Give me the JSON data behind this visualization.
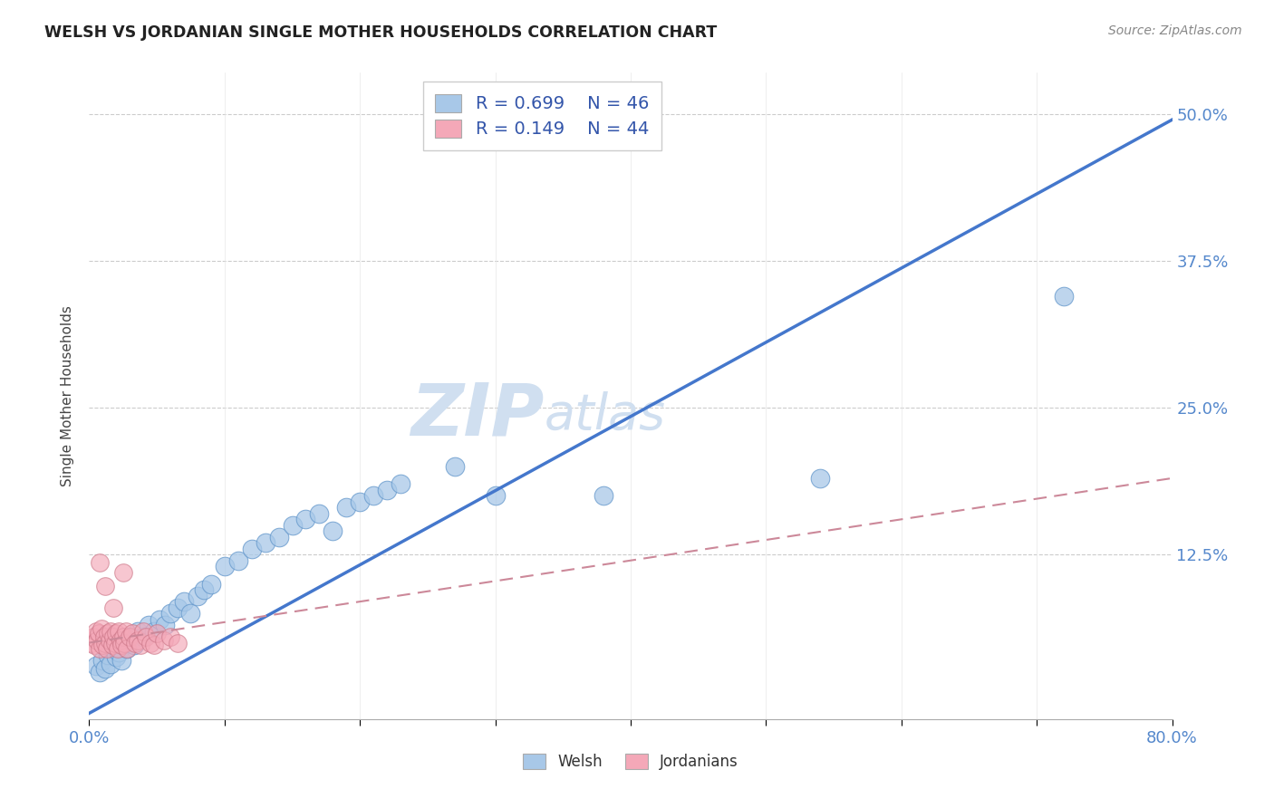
{
  "title": "WELSH VS JORDANIAN SINGLE MOTHER HOUSEHOLDS CORRELATION CHART",
  "source": "Source: ZipAtlas.com",
  "ylabel": "Single Mother Households",
  "xlim": [
    0.0,
    0.8
  ],
  "ylim": [
    -0.015,
    0.535
  ],
  "welsh_color": "#a8c8e8",
  "jordan_color": "#f4a8b8",
  "welsh_edge": "#6699cc",
  "jordan_edge": "#cc7788",
  "line_blue": "#4477cc",
  "line_pink": "#cc8899",
  "watermark_color": "#d0dff0",
  "legend_r_welsh": "R = 0.699",
  "legend_n_welsh": "N = 46",
  "legend_r_jordan": "R = 0.149",
  "legend_n_jordan": "N = 44",
  "welsh_x": [
    0.005,
    0.008,
    0.01,
    0.012,
    0.014,
    0.016,
    0.018,
    0.02,
    0.022,
    0.024,
    0.026,
    0.028,
    0.03,
    0.033,
    0.036,
    0.04,
    0.044,
    0.048,
    0.052,
    0.056,
    0.06,
    0.065,
    0.07,
    0.075,
    0.08,
    0.085,
    0.09,
    0.1,
    0.11,
    0.12,
    0.13,
    0.14,
    0.15,
    0.16,
    0.17,
    0.18,
    0.19,
    0.2,
    0.21,
    0.22,
    0.23,
    0.27,
    0.3,
    0.38,
    0.54,
    0.72
  ],
  "welsh_y": [
    0.03,
    0.025,
    0.035,
    0.028,
    0.04,
    0.032,
    0.045,
    0.038,
    0.042,
    0.035,
    0.05,
    0.045,
    0.055,
    0.048,
    0.06,
    0.055,
    0.065,
    0.06,
    0.07,
    0.065,
    0.075,
    0.08,
    0.085,
    0.075,
    0.09,
    0.095,
    0.1,
    0.115,
    0.12,
    0.13,
    0.135,
    0.14,
    0.15,
    0.155,
    0.16,
    0.145,
    0.165,
    0.17,
    0.175,
    0.18,
    0.185,
    0.2,
    0.175,
    0.175,
    0.19,
    0.345
  ],
  "jordan_x": [
    0.002,
    0.003,
    0.004,
    0.005,
    0.006,
    0.007,
    0.008,
    0.009,
    0.01,
    0.011,
    0.012,
    0.013,
    0.014,
    0.015,
    0.016,
    0.017,
    0.018,
    0.019,
    0.02,
    0.021,
    0.022,
    0.023,
    0.024,
    0.025,
    0.026,
    0.027,
    0.028,
    0.03,
    0.032,
    0.034,
    0.036,
    0.038,
    0.04,
    0.042,
    0.045,
    0.048,
    0.05,
    0.055,
    0.06,
    0.065,
    0.008,
    0.012,
    0.018,
    0.025
  ],
  "jordan_y": [
    0.05,
    0.055,
    0.048,
    0.06,
    0.052,
    0.058,
    0.045,
    0.062,
    0.048,
    0.055,
    0.05,
    0.045,
    0.058,
    0.052,
    0.06,
    0.048,
    0.055,
    0.05,
    0.058,
    0.045,
    0.06,
    0.052,
    0.048,
    0.055,
    0.05,
    0.06,
    0.045,
    0.055,
    0.058,
    0.05,
    0.052,
    0.048,
    0.06,
    0.055,
    0.05,
    0.048,
    0.058,
    0.052,
    0.055,
    0.05,
    0.118,
    0.098,
    0.08,
    0.11
  ],
  "welsh_line_x": [
    0.0,
    0.8
  ],
  "welsh_line_y": [
    -0.01,
    0.495
  ],
  "jordan_line_x": [
    0.0,
    0.8
  ],
  "jordan_line_y": [
    0.05,
    0.19
  ]
}
